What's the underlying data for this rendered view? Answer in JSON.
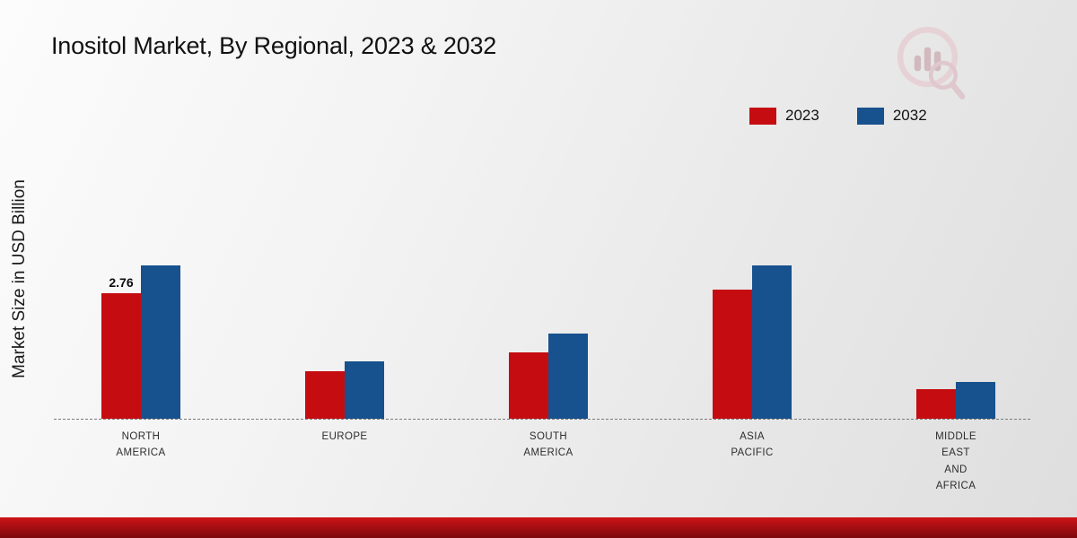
{
  "page": {
    "title": "Inositol Market, By Regional, 2023 & 2032",
    "y_axis_label": "Market Size in USD Billion"
  },
  "legend": {
    "items": [
      {
        "label": "2023",
        "color": "#c50d11"
      },
      {
        "label": "2032",
        "color": "#17518e"
      }
    ]
  },
  "chart_data": {
    "type": "bar",
    "title": "Inositol Market, By Regional, 2023 & 2032",
    "ylabel": "Market Size in USD Billion",
    "xlabel": "",
    "categories": [
      "NORTH AMERICA",
      "EUROPE",
      "SOUTH AMERICA",
      "ASIA PACIFIC",
      "MIDDLE EAST AND AFRICA"
    ],
    "series": [
      {
        "name": "2023",
        "color": "#c50d11",
        "values": [
          2.76,
          1.05,
          1.45,
          2.84,
          0.65
        ]
      },
      {
        "name": "2032",
        "color": "#17518e",
        "values": [
          3.37,
          1.26,
          1.88,
          3.37,
          0.81
        ]
      }
    ],
    "value_labels": [
      {
        "category_index": 0,
        "series_index": 0,
        "text": "2.76"
      }
    ],
    "ylim": [
      0,
      4
    ],
    "grid": false,
    "baseline_style": "dashed",
    "legend_position": "top-right"
  }
}
